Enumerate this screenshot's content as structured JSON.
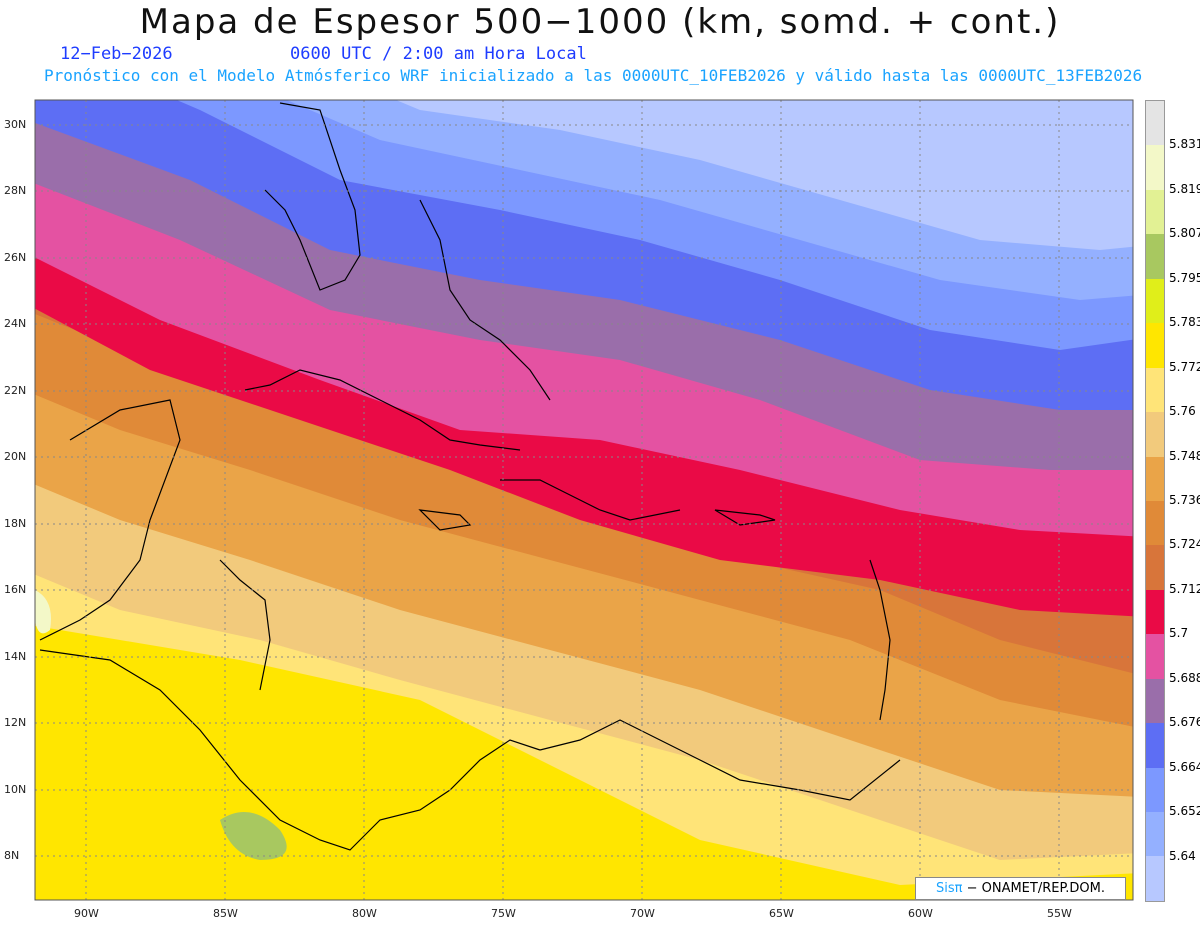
{
  "title": "Mapa de Espesor 500−1000 (km, somd. + cont.)",
  "date": "12−Feb−2026",
  "time": "0600 UTC / 2:00 am Hora Local",
  "forecast": "Pronóstico con el Modelo Atmósferico WRF inicializado a las 0000UTC_10FEB2026 y válido hasta las  0000UTC_13FEB2026",
  "credit_sis": "Sisπ",
  "credit_rest": "− ONAMET/REP.DOM.",
  "lat_labels": [
    "30N",
    "28N",
    "26N",
    "24N",
    "22N",
    "20N",
    "18N",
    "16N",
    "14N",
    "12N",
    "10N",
    "8N"
  ],
  "lon_labels": [
    "90W",
    "85W",
    "80W",
    "75W",
    "70W",
    "65W",
    "60W",
    "55W"
  ],
  "colorbar": {
    "labels": [
      "5.831",
      "5.819",
      "5.807",
      "5.795",
      "5.783",
      "5.772",
      "5.76",
      "5.748",
      "5.736",
      "5.724",
      "5.712",
      "5.7",
      "5.688",
      "5.676",
      "5.664",
      "5.652",
      "5.64"
    ],
    "colors": [
      "#e4e4e4",
      "#f3f8c8",
      "#e2f194",
      "#a8c860",
      "#e0ee1a",
      "#ffe600",
      "#ffe478",
      "#f2ca7c",
      "#eaa448",
      "#e08a38",
      "#d8753a",
      "#ea0a46",
      "#e452a2",
      "#9a6eaa",
      "#5d6ef4",
      "#7c98ff",
      "#94b0ff",
      "#b7c8ff"
    ]
  }
}
